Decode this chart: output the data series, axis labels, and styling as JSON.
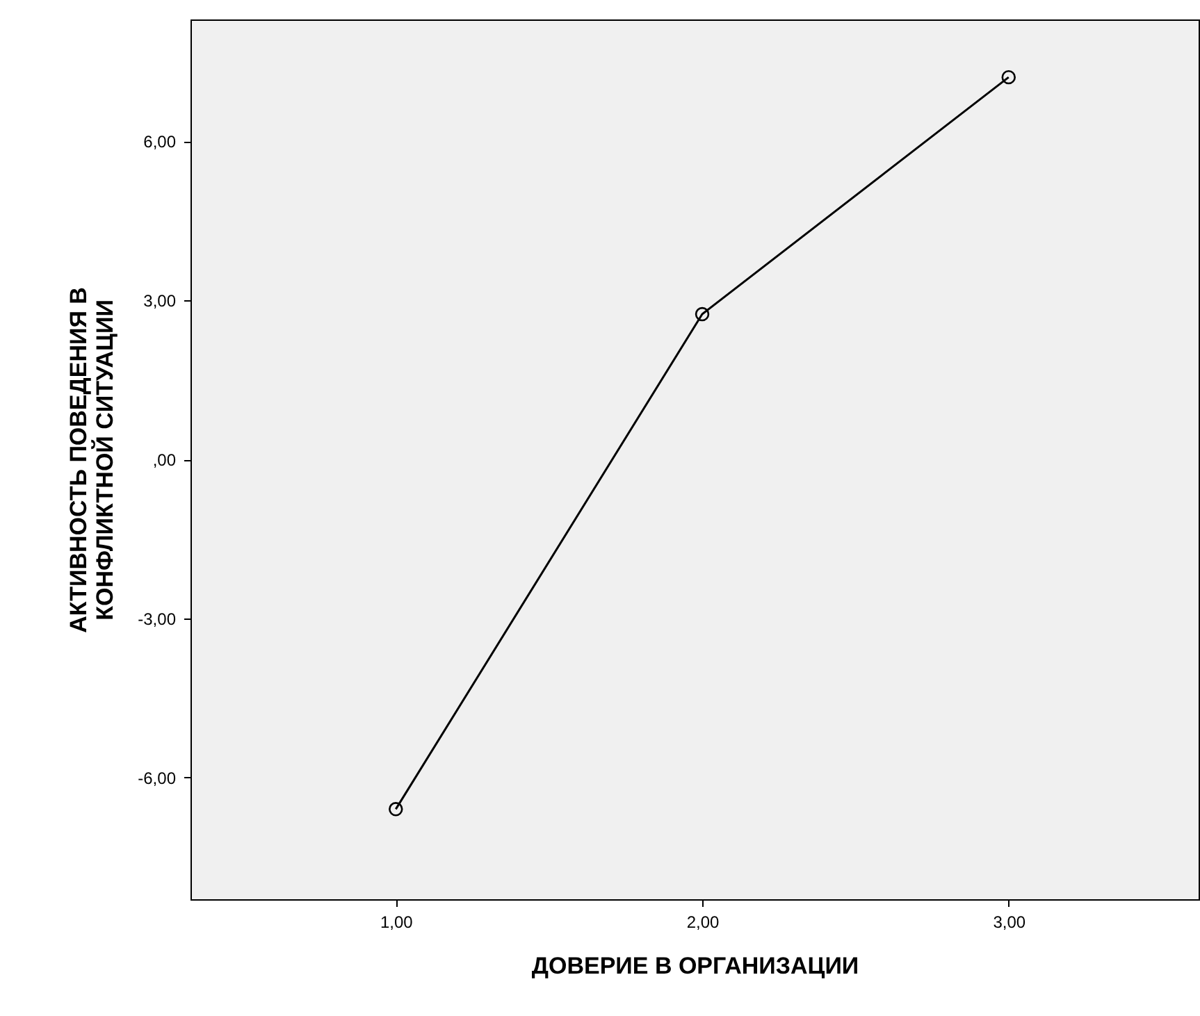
{
  "chart_data": {
    "type": "line",
    "xlabel": "ДОВЕРИЕ В ОРГАНИЗАЦИИ",
    "ylabel": "АКТИВНОСТЬ ПОВЕДЕНИЯ В\nКОНФЛИКТНОЙ СИТУАЦИИ",
    "x": [
      1,
      2,
      3
    ],
    "series": [
      {
        "color": "#000000",
        "values": [
          -6.6,
          2.74,
          7.21
        ]
      }
    ],
    "xlim": [
      0.33,
      3.62
    ],
    "ylim": [
      -8.3,
      8.3
    ],
    "xticks": [
      {
        "value": 1,
        "label": "1,00"
      },
      {
        "value": 2,
        "label": "2,00"
      },
      {
        "value": 3,
        "label": "3,00"
      }
    ],
    "yticks": [
      {
        "value": -6,
        "label": "-6,00"
      },
      {
        "value": -3,
        "label": "-3,00"
      },
      {
        "value": 0,
        "label": ",00"
      },
      {
        "value": 3,
        "label": "3,00"
      },
      {
        "value": 6,
        "label": "6,00"
      }
    ],
    "marker": "circle",
    "line_style": "solid",
    "grid": false
  }
}
